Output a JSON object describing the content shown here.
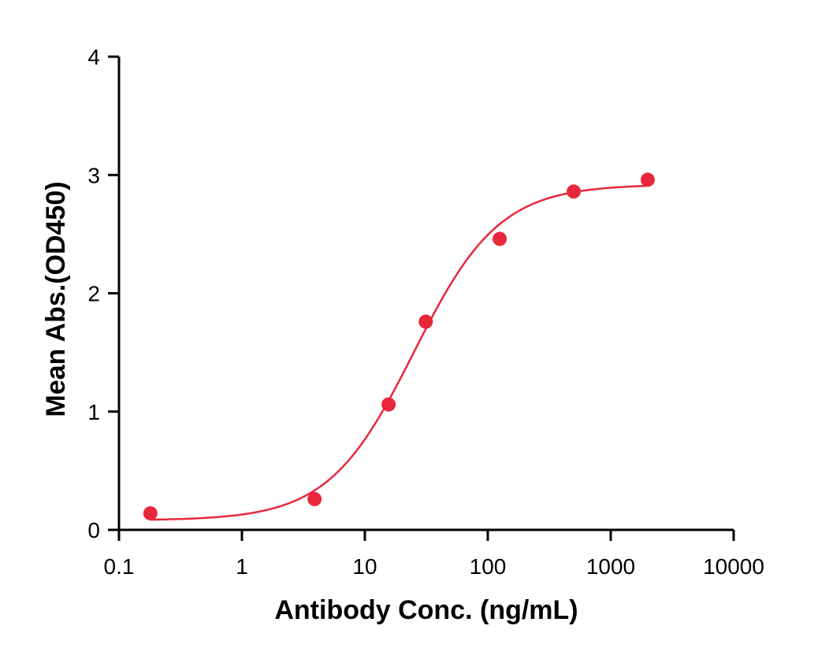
{
  "chart_data": {
    "type": "scatter",
    "title": "",
    "xlabel": "Antibody Conc. (ng/mL)",
    "ylabel": "Mean Abs.(OD450)",
    "x_scale": "log",
    "xlim": [
      0.1,
      10000
    ],
    "ylim": [
      0,
      4
    ],
    "x_ticks": [
      0.1,
      1,
      10,
      100,
      1000,
      10000
    ],
    "x_tick_labels": [
      "0.1",
      "1",
      "10",
      "100",
      "1000",
      "10000"
    ],
    "y_ticks": [
      0,
      1,
      2,
      3,
      4
    ],
    "y_tick_labels": [
      "0",
      "1",
      "2",
      "3",
      "4"
    ],
    "grid": false,
    "color": "#e8283a",
    "series": [
      {
        "x": [
          0.18,
          3.9,
          15.6,
          31.3,
          125,
          500,
          2000
        ],
        "y": [
          0.14,
          0.26,
          1.06,
          1.76,
          2.46,
          2.86,
          2.96
        ]
      }
    ],
    "fit_curve": {
      "model": "4PL",
      "bottom": 0.08,
      "top": 2.92,
      "ec50": 25,
      "hill": 1.25,
      "x_range": [
        0.18,
        2000
      ]
    }
  }
}
